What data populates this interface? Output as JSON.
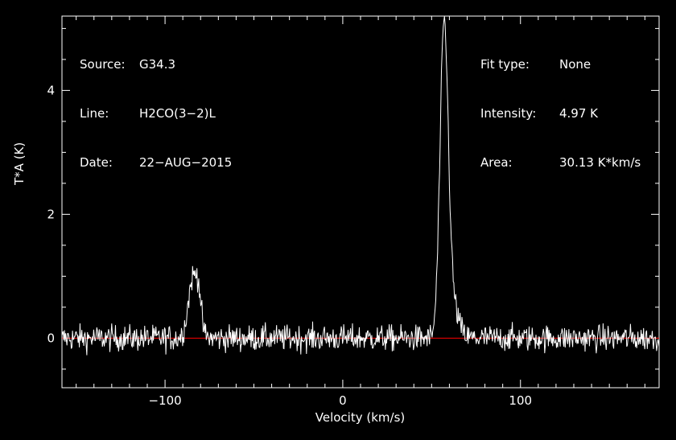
{
  "info": {
    "source_label": "Source:",
    "source_value": "G34.3",
    "line_label": "Line:",
    "line_value": "H2CO(3−2)L",
    "date_label": "Date:",
    "date_value": "22−AUG−2015",
    "fit_label": "Fit type:",
    "fit_value": "None",
    "intensity_label": "Intensity:",
    "intensity_value": "4.97 K",
    "area_label": "Area:",
    "area_value": "30.13 K*km/s"
  },
  "colors": {
    "background": "#000000",
    "spectrum": "#ffffff",
    "baseline": "#ff0000",
    "axes": "#ffffff"
  },
  "chart_data": {
    "type": "line",
    "title": "",
    "xlabel": "Velocity (km/s)",
    "ylabel": "T*A (K)",
    "xlim": [
      -158,
      178
    ],
    "ylim": [
      -0.8,
      5.2
    ],
    "x_ticks": [
      -100,
      0,
      100
    ],
    "x_tick_labels": [
      "−100",
      "0",
      "100"
    ],
    "y_ticks": [
      0,
      2,
      4
    ],
    "y_tick_labels": [
      "0",
      "2",
      "4"
    ],
    "grid": false,
    "baseline_y": 0,
    "series": [
      {
        "noise_rms": 0.15,
        "channel_width": 0.35,
        "components": [
          {
            "center": -84,
            "amplitude": 1.0,
            "sigma": 2.8
          },
          {
            "center": -81,
            "amplitude": 0.35,
            "sigma": 1.2
          },
          {
            "center": 57,
            "amplitude": 4.8,
            "sigma": 2.3
          },
          {
            "center": 61,
            "amplitude": 0.6,
            "sigma": 3.5
          }
        ]
      }
    ]
  }
}
